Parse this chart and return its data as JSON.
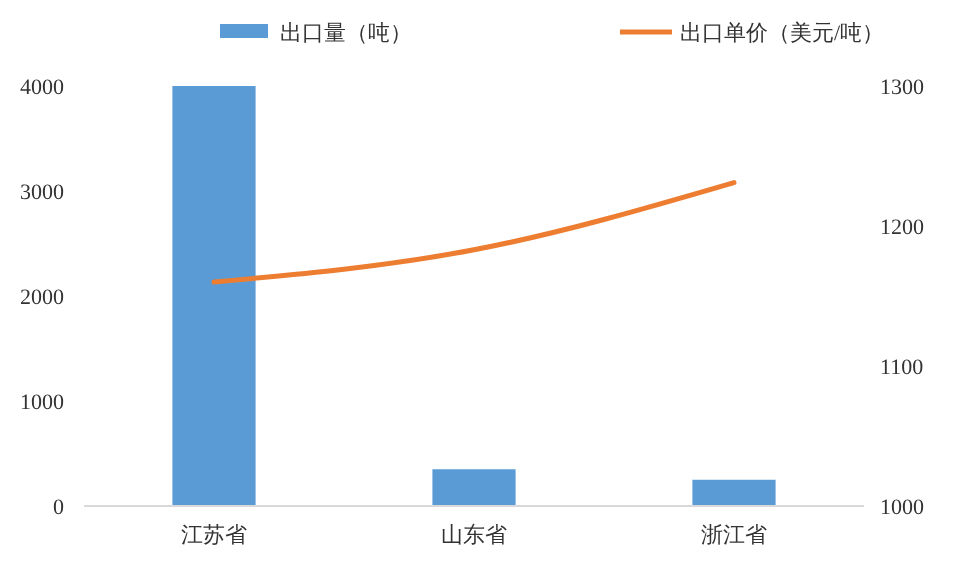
{
  "chart_data": {
    "type": "bar",
    "categories": [
      "江苏省",
      "山东省",
      "浙江省"
    ],
    "series": [
      {
        "name": "出口量（吨）",
        "color": "#5b9bd5",
        "values": [
          4000,
          350,
          250
        ]
      },
      {
        "name": "出口单价（美元/吨）",
        "type": "line",
        "axis": "y2",
        "color": "#ed7d31",
        "values": [
          1160,
          1183,
          1231
        ]
      }
    ],
    "ylim": [
      0,
      4000
    ],
    "yticks": [
      0,
      1000,
      2000,
      3000,
      4000
    ],
    "y2lim": [
      1000,
      1300
    ],
    "y2ticks": [
      1000,
      1100,
      1200,
      1300
    ],
    "legend": "top",
    "grid": false,
    "marker": "none"
  }
}
